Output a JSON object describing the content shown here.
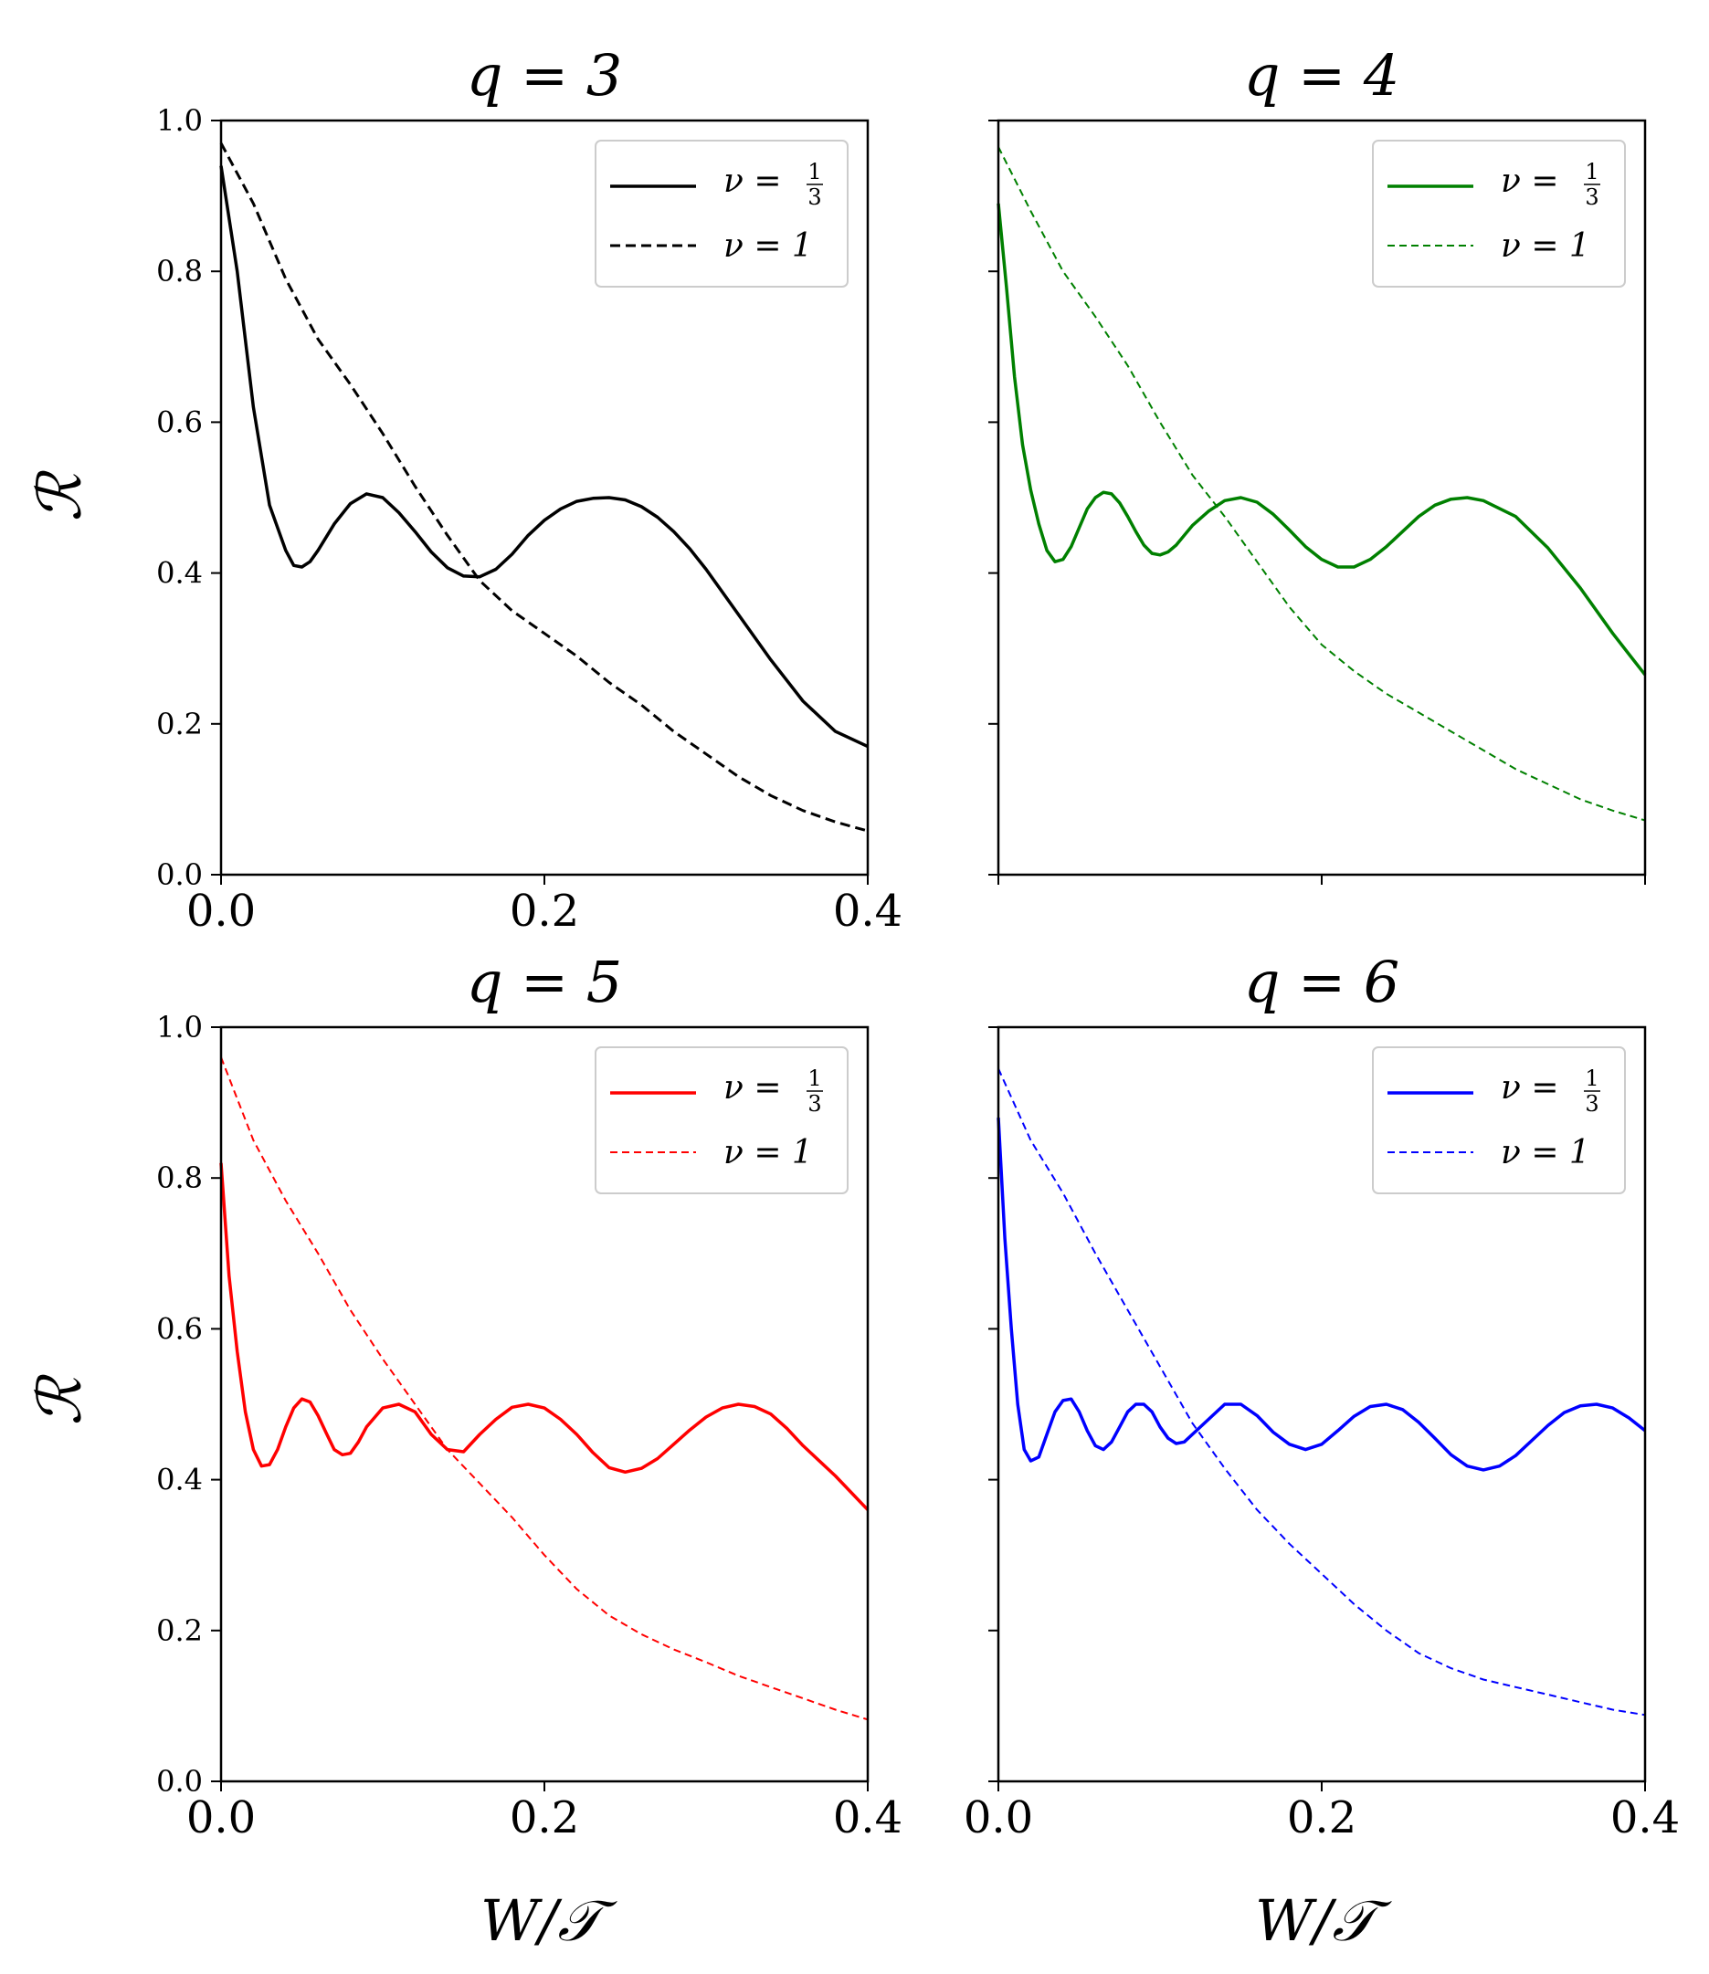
{
  "figure": {
    "xlabel": "W/𝒯",
    "ylabel": "ℛ"
  },
  "chart_data": [
    {
      "type": "line",
      "title": "q = 3",
      "color": "#000000",
      "xlim": [
        0,
        0.4
      ],
      "ylim": [
        0,
        1.0
      ],
      "xticks": [
        0.0,
        0.2,
        0.4
      ],
      "yticks": [
        0.0,
        0.2,
        0.4,
        0.6,
        0.8,
        1.0
      ],
      "xtick_labels": [
        "0.0",
        "0.2",
        "0.4"
      ],
      "ytick_labels": [
        "0.0",
        "0.2",
        "0.4",
        "0.6",
        "0.8",
        "1.0"
      ],
      "legend": {
        "location": "upper right",
        "nu_third_label": "ν = 1/3",
        "nu_third_text": "ν =",
        "frac_num": "1",
        "frac_den": "3",
        "nu_one_label": "ν = 1"
      },
      "series": [
        {
          "name": "ν = 1/3",
          "style": "solid",
          "x": [
            0.0,
            0.01,
            0.02,
            0.03,
            0.04,
            0.045,
            0.05,
            0.055,
            0.06,
            0.07,
            0.08,
            0.09,
            0.1,
            0.11,
            0.12,
            0.13,
            0.14,
            0.15,
            0.16,
            0.17,
            0.18,
            0.19,
            0.2,
            0.21,
            0.22,
            0.23,
            0.24,
            0.25,
            0.26,
            0.27,
            0.28,
            0.29,
            0.3,
            0.32,
            0.34,
            0.36,
            0.38,
            0.4
          ],
          "y": [
            0.94,
            0.8,
            0.62,
            0.49,
            0.43,
            0.41,
            0.408,
            0.415,
            0.43,
            0.465,
            0.492,
            0.505,
            0.5,
            0.48,
            0.455,
            0.428,
            0.407,
            0.396,
            0.395,
            0.405,
            0.425,
            0.45,
            0.47,
            0.485,
            0.495,
            0.499,
            0.5,
            0.497,
            0.488,
            0.474,
            0.455,
            0.432,
            0.405,
            0.345,
            0.285,
            0.23,
            0.19,
            0.17
          ]
        },
        {
          "name": "ν = 1",
          "style": "dashed",
          "x": [
            0.0,
            0.02,
            0.04,
            0.06,
            0.08,
            0.1,
            0.12,
            0.14,
            0.16,
            0.18,
            0.2,
            0.22,
            0.24,
            0.26,
            0.28,
            0.3,
            0.32,
            0.34,
            0.36,
            0.38,
            0.4
          ],
          "y": [
            0.97,
            0.89,
            0.79,
            0.71,
            0.65,
            0.585,
            0.515,
            0.45,
            0.39,
            0.35,
            0.32,
            0.29,
            0.255,
            0.225,
            0.19,
            0.16,
            0.13,
            0.105,
            0.085,
            0.07,
            0.058
          ]
        }
      ]
    },
    {
      "type": "line",
      "title": "q = 4",
      "color": "#008000",
      "xlim": [
        0,
        0.4
      ],
      "ylim": [
        0,
        1.0
      ],
      "xticks": [
        0.0,
        0.2,
        0.4
      ],
      "yticks": [
        0.0,
        0.2,
        0.4,
        0.6,
        0.8,
        1.0
      ],
      "xtick_labels": [],
      "ytick_labels": [],
      "legend": {
        "location": "upper right",
        "nu_third_label": "ν = 1/3",
        "nu_third_text": "ν =",
        "frac_num": "1",
        "frac_den": "3",
        "nu_one_label": "ν = 1"
      },
      "series": [
        {
          "name": "ν = 1/3",
          "style": "solid",
          "x": [
            0.0,
            0.005,
            0.01,
            0.015,
            0.02,
            0.025,
            0.03,
            0.035,
            0.04,
            0.045,
            0.05,
            0.055,
            0.06,
            0.065,
            0.07,
            0.075,
            0.08,
            0.085,
            0.09,
            0.095,
            0.1,
            0.105,
            0.11,
            0.115,
            0.12,
            0.13,
            0.14,
            0.15,
            0.16,
            0.17,
            0.18,
            0.19,
            0.2,
            0.21,
            0.22,
            0.23,
            0.24,
            0.25,
            0.26,
            0.27,
            0.28,
            0.29,
            0.3,
            0.32,
            0.34,
            0.36,
            0.38,
            0.4
          ],
          "y": [
            0.89,
            0.78,
            0.66,
            0.57,
            0.51,
            0.465,
            0.43,
            0.415,
            0.418,
            0.435,
            0.46,
            0.485,
            0.5,
            0.507,
            0.505,
            0.493,
            0.475,
            0.455,
            0.437,
            0.426,
            0.424,
            0.428,
            0.437,
            0.45,
            0.463,
            0.482,
            0.496,
            0.5,
            0.494,
            0.478,
            0.457,
            0.435,
            0.418,
            0.408,
            0.408,
            0.418,
            0.435,
            0.455,
            0.475,
            0.49,
            0.498,
            0.5,
            0.496,
            0.475,
            0.433,
            0.38,
            0.32,
            0.265
          ]
        },
        {
          "name": "ν = 1",
          "style": "dashed",
          "x": [
            0.0,
            0.02,
            0.04,
            0.06,
            0.08,
            0.1,
            0.12,
            0.14,
            0.16,
            0.18,
            0.2,
            0.22,
            0.24,
            0.26,
            0.28,
            0.3,
            0.32,
            0.34,
            0.36,
            0.38,
            0.4
          ],
          "y": [
            0.965,
            0.88,
            0.8,
            0.74,
            0.675,
            0.6,
            0.53,
            0.475,
            0.415,
            0.355,
            0.305,
            0.27,
            0.24,
            0.215,
            0.19,
            0.165,
            0.14,
            0.12,
            0.1,
            0.085,
            0.072
          ]
        }
      ]
    },
    {
      "type": "line",
      "title": "q = 5",
      "color": "#ff0000",
      "xlim": [
        0,
        0.4
      ],
      "ylim": [
        0,
        1.0
      ],
      "xticks": [
        0.0,
        0.2,
        0.4
      ],
      "yticks": [
        0.0,
        0.2,
        0.4,
        0.6,
        0.8,
        1.0
      ],
      "xtick_labels": [
        "0.0",
        "0.2",
        "0.4"
      ],
      "ytick_labels": [
        "0.0",
        "0.2",
        "0.4",
        "0.6",
        "0.8",
        "1.0"
      ],
      "legend": {
        "location": "upper right",
        "nu_third_label": "ν = 1/3",
        "nu_third_text": "ν =",
        "frac_num": "1",
        "frac_den": "3",
        "nu_one_label": "ν = 1"
      },
      "series": [
        {
          "name": "ν = 1/3",
          "style": "solid",
          "x": [
            0.0,
            0.005,
            0.01,
            0.015,
            0.02,
            0.025,
            0.03,
            0.035,
            0.04,
            0.045,
            0.05,
            0.055,
            0.06,
            0.065,
            0.07,
            0.075,
            0.08,
            0.085,
            0.09,
            0.1,
            0.11,
            0.12,
            0.13,
            0.14,
            0.15,
            0.16,
            0.17,
            0.18,
            0.19,
            0.2,
            0.21,
            0.22,
            0.23,
            0.24,
            0.25,
            0.26,
            0.27,
            0.28,
            0.29,
            0.3,
            0.31,
            0.32,
            0.33,
            0.34,
            0.35,
            0.36,
            0.38,
            0.4
          ],
          "y": [
            0.82,
            0.67,
            0.57,
            0.49,
            0.44,
            0.418,
            0.42,
            0.44,
            0.47,
            0.495,
            0.507,
            0.503,
            0.485,
            0.462,
            0.44,
            0.433,
            0.435,
            0.45,
            0.47,
            0.495,
            0.5,
            0.49,
            0.46,
            0.44,
            0.437,
            0.46,
            0.48,
            0.496,
            0.5,
            0.495,
            0.48,
            0.46,
            0.436,
            0.416,
            0.41,
            0.415,
            0.428,
            0.447,
            0.466,
            0.483,
            0.495,
            0.5,
            0.497,
            0.487,
            0.468,
            0.445,
            0.405,
            0.36
          ]
        },
        {
          "name": "ν = 1",
          "style": "dashed",
          "x": [
            0.0,
            0.02,
            0.04,
            0.06,
            0.08,
            0.1,
            0.12,
            0.14,
            0.16,
            0.18,
            0.2,
            0.22,
            0.24,
            0.26,
            0.28,
            0.3,
            0.32,
            0.34,
            0.36,
            0.38,
            0.4
          ],
          "y": [
            0.96,
            0.85,
            0.77,
            0.7,
            0.625,
            0.56,
            0.5,
            0.44,
            0.395,
            0.35,
            0.3,
            0.255,
            0.22,
            0.195,
            0.175,
            0.158,
            0.14,
            0.125,
            0.11,
            0.095,
            0.082
          ]
        }
      ]
    },
    {
      "type": "line",
      "title": "q = 6",
      "color": "#0000ff",
      "xlim": [
        0,
        0.4
      ],
      "ylim": [
        0,
        1.0
      ],
      "xticks": [
        0.0,
        0.2,
        0.4
      ],
      "yticks": [
        0.0,
        0.2,
        0.4,
        0.6,
        0.8,
        1.0
      ],
      "xtick_labels": [
        "0.0",
        "0.2",
        "0.4"
      ],
      "ytick_labels": [],
      "legend": {
        "location": "upper right",
        "nu_third_label": "ν = 1/3",
        "nu_third_text": "ν =",
        "frac_num": "1",
        "frac_den": "3",
        "nu_one_label": "ν = 1"
      },
      "series": [
        {
          "name": "ν = 1/3",
          "style": "solid",
          "x": [
            0.0,
            0.004,
            0.008,
            0.012,
            0.016,
            0.02,
            0.025,
            0.03,
            0.035,
            0.04,
            0.045,
            0.05,
            0.055,
            0.06,
            0.065,
            0.07,
            0.075,
            0.08,
            0.085,
            0.09,
            0.095,
            0.1,
            0.105,
            0.11,
            0.115,
            0.12,
            0.13,
            0.14,
            0.15,
            0.16,
            0.17,
            0.18,
            0.19,
            0.2,
            0.21,
            0.22,
            0.23,
            0.24,
            0.25,
            0.26,
            0.27,
            0.28,
            0.29,
            0.3,
            0.31,
            0.32,
            0.33,
            0.34,
            0.35,
            0.36,
            0.37,
            0.38,
            0.39,
            0.4
          ],
          "y": [
            0.88,
            0.72,
            0.6,
            0.5,
            0.44,
            0.425,
            0.43,
            0.46,
            0.49,
            0.505,
            0.507,
            0.49,
            0.465,
            0.445,
            0.44,
            0.45,
            0.47,
            0.49,
            0.5,
            0.5,
            0.49,
            0.47,
            0.455,
            0.448,
            0.45,
            0.46,
            0.48,
            0.5,
            0.5,
            0.485,
            0.463,
            0.447,
            0.44,
            0.447,
            0.465,
            0.484,
            0.497,
            0.5,
            0.493,
            0.476,
            0.455,
            0.433,
            0.418,
            0.413,
            0.418,
            0.432,
            0.452,
            0.472,
            0.489,
            0.498,
            0.5,
            0.495,
            0.482,
            0.465
          ]
        },
        {
          "name": "ν = 1",
          "style": "dashed",
          "x": [
            0.0,
            0.02,
            0.04,
            0.06,
            0.08,
            0.1,
            0.12,
            0.14,
            0.16,
            0.18,
            0.2,
            0.22,
            0.24,
            0.26,
            0.28,
            0.3,
            0.32,
            0.34,
            0.36,
            0.38,
            0.4
          ],
          "y": [
            0.945,
            0.85,
            0.78,
            0.7,
            0.625,
            0.55,
            0.475,
            0.415,
            0.36,
            0.315,
            0.275,
            0.235,
            0.2,
            0.17,
            0.15,
            0.135,
            0.125,
            0.115,
            0.105,
            0.095,
            0.088
          ]
        }
      ]
    }
  ]
}
